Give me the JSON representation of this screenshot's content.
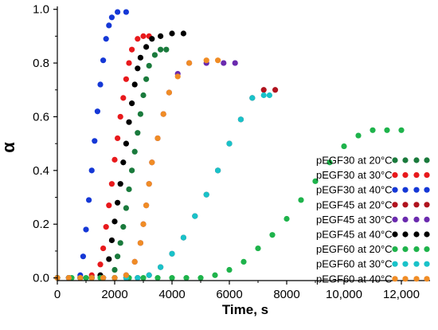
{
  "chart_data": {
    "type": "scatter",
    "xlabel": "Time, s",
    "ylabel": "α",
    "xlim": [
      0,
      13000
    ],
    "ylim": [
      0,
      1.0
    ],
    "xticks": [
      0,
      2000,
      4000,
      6000,
      8000,
      10000,
      12000
    ],
    "xtick_labels": [
      "0",
      "2000",
      "4000",
      "6000",
      "8000",
      "10,000",
      "12,000"
    ],
    "yticks": [
      0.0,
      0.2,
      0.4,
      0.6,
      0.8,
      1.0
    ],
    "ytick_labels": [
      "0.0",
      "0.2",
      "0.4",
      "0.6",
      "0.8",
      "1.0"
    ],
    "grid": false,
    "legend_position": "bottom-right",
    "series": [
      {
        "name": "pEGF30 at 20°C",
        "color": "#1a7a3c",
        "points": [
          [
            0,
            0
          ],
          [
            400,
            0
          ],
          [
            800,
            0
          ],
          [
            1200,
            0
          ],
          [
            1600,
            0
          ],
          [
            2000,
            0.03
          ],
          [
            2100,
            0.08
          ],
          [
            2200,
            0.13
          ],
          [
            2300,
            0.19
          ],
          [
            2400,
            0.26
          ],
          [
            2500,
            0.33
          ],
          [
            2600,
            0.4
          ],
          [
            2700,
            0.47
          ],
          [
            2800,
            0.54
          ],
          [
            2900,
            0.61
          ],
          [
            3000,
            0.68
          ],
          [
            3100,
            0.74
          ],
          [
            3200,
            0.79
          ],
          [
            3400,
            0.83
          ],
          [
            3600,
            0.85
          ],
          [
            3800,
            0.85
          ]
        ]
      },
      {
        "name": "pEGF30 at 30°C",
        "color": "#e8191c",
        "points": [
          [
            0,
            0
          ],
          [
            400,
            0
          ],
          [
            800,
            0
          ],
          [
            1200,
            0.01
          ],
          [
            1500,
            0.05
          ],
          [
            1600,
            0.11
          ],
          [
            1700,
            0.19
          ],
          [
            1800,
            0.27
          ],
          [
            1900,
            0.35
          ],
          [
            2000,
            0.44
          ],
          [
            2100,
            0.52
          ],
          [
            2200,
            0.6
          ],
          [
            2300,
            0.67
          ],
          [
            2400,
            0.74
          ],
          [
            2500,
            0.8
          ],
          [
            2600,
            0.85
          ],
          [
            2800,
            0.89
          ],
          [
            3000,
            0.9
          ],
          [
            3200,
            0.9
          ]
        ]
      },
      {
        "name": "pEGF30 at 40°C",
        "color": "#1538d6",
        "points": [
          [
            0,
            0
          ],
          [
            400,
            0
          ],
          [
            800,
            0.01
          ],
          [
            900,
            0.08
          ],
          [
            1000,
            0.18
          ],
          [
            1100,
            0.29
          ],
          [
            1200,
            0.4
          ],
          [
            1300,
            0.51
          ],
          [
            1400,
            0.62
          ],
          [
            1500,
            0.72
          ],
          [
            1600,
            0.81
          ],
          [
            1700,
            0.89
          ],
          [
            1800,
            0.94
          ],
          [
            1900,
            0.97
          ],
          [
            2100,
            0.99
          ],
          [
            2400,
            0.99
          ]
        ]
      },
      {
        "name": "pEGF45 at 20°C",
        "color": "#b0131e",
        "points": [
          [
            0,
            0
          ],
          [
            400,
            0
          ],
          [
            800,
            0
          ],
          [
            1200,
            0
          ],
          [
            1600,
            0
          ],
          [
            2000,
            0
          ],
          [
            2400,
            0
          ],
          [
            2800,
            0
          ],
          [
            3200,
            0.01
          ],
          [
            3600,
            0.04
          ],
          [
            4000,
            0.09
          ],
          [
            4400,
            0.15
          ],
          [
            4800,
            0.23
          ],
          [
            5200,
            0.31
          ],
          [
            5600,
            0.4
          ],
          [
            6000,
            0.5
          ],
          [
            6400,
            0.59
          ],
          [
            6800,
            0.67
          ],
          [
            7200,
            0.7
          ],
          [
            7600,
            0.7
          ]
        ]
      },
      {
        "name": "pEGF45 at 30°C",
        "color": "#6a2aae",
        "points": [
          [
            0,
            0
          ],
          [
            400,
            0
          ],
          [
            800,
            0
          ],
          [
            1200,
            0
          ],
          [
            1600,
            0
          ],
          [
            2000,
            0
          ],
          [
            2400,
            0.01
          ],
          [
            2700,
            0.06
          ],
          [
            2900,
            0.13
          ],
          [
            3000,
            0.2
          ],
          [
            3100,
            0.27
          ],
          [
            3200,
            0.35
          ],
          [
            3300,
            0.43
          ],
          [
            3500,
            0.52
          ],
          [
            3700,
            0.61
          ],
          [
            3900,
            0.69
          ],
          [
            4200,
            0.76
          ],
          [
            4600,
            0.8
          ],
          [
            5200,
            0.8
          ],
          [
            5800,
            0.8
          ],
          [
            6200,
            0.8
          ]
        ]
      },
      {
        "name": "pEGF45 at 40°C",
        "color": "#000000",
        "points": [
          [
            0,
            0
          ],
          [
            400,
            0
          ],
          [
            800,
            0
          ],
          [
            1200,
            0
          ],
          [
            1500,
            0.01
          ],
          [
            1800,
            0.07
          ],
          [
            1900,
            0.14
          ],
          [
            2000,
            0.21
          ],
          [
            2100,
            0.28
          ],
          [
            2200,
            0.35
          ],
          [
            2300,
            0.43
          ],
          [
            2400,
            0.5
          ],
          [
            2500,
            0.58
          ],
          [
            2600,
            0.65
          ],
          [
            2700,
            0.72
          ],
          [
            2800,
            0.78
          ],
          [
            2900,
            0.82
          ],
          [
            3100,
            0.86
          ],
          [
            3300,
            0.89
          ],
          [
            3600,
            0.9
          ],
          [
            4000,
            0.91
          ],
          [
            4400,
            0.91
          ]
        ]
      },
      {
        "name": "pEGF60 at 20°C",
        "color": "#1eb34b",
        "points": [
          [
            0,
            0
          ],
          [
            500,
            0
          ],
          [
            1000,
            0
          ],
          [
            1500,
            0
          ],
          [
            2000,
            0
          ],
          [
            2500,
            0
          ],
          [
            3000,
            0
          ],
          [
            3500,
            0
          ],
          [
            4000,
            0
          ],
          [
            4500,
            0
          ],
          [
            5000,
            0
          ],
          [
            5500,
            0.01
          ],
          [
            6000,
            0.03
          ],
          [
            6500,
            0.06
          ],
          [
            7000,
            0.11
          ],
          [
            7500,
            0.16
          ],
          [
            8000,
            0.22
          ],
          [
            8500,
            0.29
          ],
          [
            9000,
            0.36
          ],
          [
            9500,
            0.43
          ],
          [
            10000,
            0.49
          ],
          [
            10500,
            0.53
          ],
          [
            11000,
            0.55
          ],
          [
            11500,
            0.55
          ],
          [
            12000,
            0.55
          ]
        ]
      },
      {
        "name": "pEGF60 at 30°C",
        "color": "#19c2c9",
        "points": [
          [
            0,
            0
          ],
          [
            400,
            0
          ],
          [
            800,
            0
          ],
          [
            1200,
            0
          ],
          [
            1600,
            0
          ],
          [
            2000,
            0
          ],
          [
            2400,
            0
          ],
          [
            2800,
            0
          ],
          [
            3200,
            0.01
          ],
          [
            3600,
            0.04
          ],
          [
            4000,
            0.09
          ],
          [
            4400,
            0.15
          ],
          [
            4800,
            0.23
          ],
          [
            5200,
            0.31
          ],
          [
            5600,
            0.4
          ],
          [
            6000,
            0.5
          ],
          [
            6400,
            0.59
          ],
          [
            6800,
            0.67
          ],
          [
            7200,
            0.68
          ],
          [
            7400,
            0.68
          ]
        ]
      },
      {
        "name": "pEGF60 at 40°C",
        "color": "#f08c25",
        "points": [
          [
            0,
            0
          ],
          [
            400,
            0
          ],
          [
            800,
            0
          ],
          [
            1200,
            0
          ],
          [
            1600,
            0
          ],
          [
            2000,
            0
          ],
          [
            2400,
            0.01
          ],
          [
            2700,
            0.06
          ],
          [
            2900,
            0.13
          ],
          [
            3000,
            0.2
          ],
          [
            3100,
            0.27
          ],
          [
            3200,
            0.35
          ],
          [
            3300,
            0.43
          ],
          [
            3500,
            0.52
          ],
          [
            3700,
            0.61
          ],
          [
            3900,
            0.69
          ],
          [
            4200,
            0.75
          ],
          [
            4600,
            0.8
          ],
          [
            5200,
            0.81
          ],
          [
            5600,
            0.81
          ]
        ]
      }
    ]
  }
}
